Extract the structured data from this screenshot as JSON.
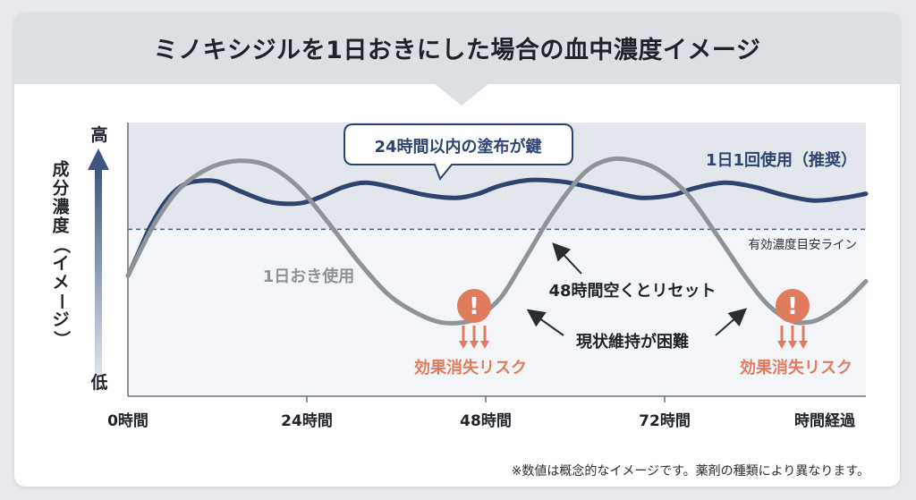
{
  "title": "ミノキシジルを1日おきにした場合の血中濃度イメージ",
  "footnote": "※数値は概念的なイメージです。薬剤の種類により異なります。",
  "colors": {
    "daily": "#2d4470",
    "alternate": "#8e9398",
    "threshold": "#4a5f84",
    "risk": "#e07b5d",
    "plot_bg_upper": "#e3e6ec",
    "plot_bg_lower": "#f3f5f8"
  },
  "chart_data": {
    "type": "line",
    "title": "ミノキシジルを1日おきにした場合の血中濃度イメージ",
    "ylabel": "成分濃度（イメージ）",
    "y_high_label": "高",
    "y_low_label": "低",
    "xlabel": "",
    "x_ticks": [
      {
        "x": 0,
        "label": "0時間"
      },
      {
        "x": 24,
        "label": "24時間"
      },
      {
        "x": 48,
        "label": "48時間"
      },
      {
        "x": 72,
        "label": "72時間"
      },
      {
        "x": 96,
        "label": "時間経過"
      }
    ],
    "xlim": [
      0,
      99
    ],
    "ylim": [
      0,
      100
    ],
    "threshold": {
      "value": 61,
      "label": "有効濃度目安ライン"
    },
    "series": [
      {
        "name": "1日1回使用（推奨）",
        "color_key": "daily",
        "points": [
          [
            0,
            44
          ],
          [
            1.5,
            53
          ],
          [
            3,
            62
          ],
          [
            5,
            71
          ],
          [
            7,
            76.5
          ],
          [
            9,
            78.5
          ],
          [
            12,
            78.5
          ],
          [
            15,
            75
          ],
          [
            19,
            71
          ],
          [
            23,
            70.5
          ],
          [
            26,
            73
          ],
          [
            29,
            76.5
          ],
          [
            32,
            78
          ],
          [
            36,
            76
          ],
          [
            40,
            73.5
          ],
          [
            44,
            72.5
          ],
          [
            47,
            74
          ],
          [
            50,
            77
          ],
          [
            54,
            79
          ],
          [
            58,
            78.5
          ],
          [
            61,
            77
          ],
          [
            65,
            74.5
          ],
          [
            69,
            72.5
          ],
          [
            73,
            73.5
          ],
          [
            76,
            76
          ],
          [
            80,
            78
          ],
          [
            84,
            76.5
          ],
          [
            88,
            73.5
          ],
          [
            92,
            71.5
          ],
          [
            96,
            72.5
          ],
          [
            99,
            74
          ]
        ]
      },
      {
        "name": "1日おき使用",
        "color_key": "alternate",
        "points": [
          [
            0,
            44
          ],
          [
            2,
            55
          ],
          [
            4,
            65
          ],
          [
            7,
            76
          ],
          [
            11,
            83.5
          ],
          [
            15,
            86
          ],
          [
            19,
            84
          ],
          [
            23,
            76
          ],
          [
            27,
            63
          ],
          [
            31,
            49
          ],
          [
            35,
            37
          ],
          [
            39,
            30
          ],
          [
            42,
            27
          ],
          [
            45,
            27
          ],
          [
            47,
            29
          ],
          [
            50,
            36
          ],
          [
            53,
            49
          ],
          [
            57,
            67
          ],
          [
            61,
            81
          ],
          [
            64,
            86
          ],
          [
            67,
            86.5
          ],
          [
            71,
            83
          ],
          [
            75,
            74
          ],
          [
            79,
            59
          ],
          [
            83,
            43
          ],
          [
            86,
            33
          ],
          [
            89,
            27.5
          ],
          [
            91,
            27
          ],
          [
            93,
            28.5
          ],
          [
            96,
            34
          ],
          [
            99,
            42
          ]
        ]
      }
    ],
    "annotations": [
      {
        "text": "24時間以内の塗布が鍵",
        "kind": "callout"
      },
      {
        "text": "48時間空くとリセット",
        "kind": "arrow-label"
      },
      {
        "text": "現状維持が困難",
        "kind": "arrow-label"
      },
      {
        "text": "効果消失リスク",
        "kind": "risk"
      },
      {
        "text": "効果消失リスク",
        "kind": "risk"
      }
    ],
    "grid": false,
    "legend": "inline"
  }
}
